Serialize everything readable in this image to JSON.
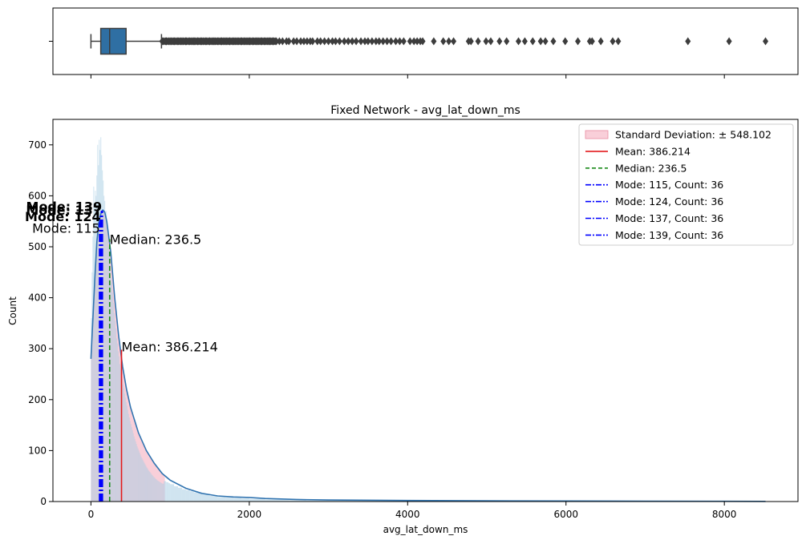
{
  "chart_data": [
    {
      "type": "boxplot",
      "orientation": "horizontal",
      "xlim": [
        -480,
        8930
      ],
      "box": {
        "min": 0,
        "q1": 124,
        "median": 236.5,
        "q3": 444,
        "whisker_high": 891,
        "color": "#2f6fa3"
      },
      "outliers": [
        900,
        950,
        1000,
        1050,
        1100,
        1150,
        1200,
        1250,
        1300,
        1350,
        1400,
        1450,
        1500,
        1550,
        1600,
        1650,
        1700,
        1750,
        1800,
        1850,
        1900,
        1950,
        2000,
        2050,
        2100,
        2150,
        2200,
        2250,
        2300,
        2380,
        2420,
        2470,
        2500,
        2560,
        2600,
        2650,
        2690,
        2730,
        2770,
        2800,
        2860,
        2900,
        2950,
        3000,
        3050,
        3090,
        3140,
        3200,
        3250,
        3300,
        3350,
        3410,
        3460,
        3500,
        3550,
        3600,
        3640,
        3690,
        3740,
        3790,
        3850,
        3900,
        3950,
        4030,
        4080,
        4120,
        4160,
        4190,
        4330,
        4450,
        4520,
        4580,
        4770,
        4800,
        4890,
        4990,
        5050,
        5160,
        5250,
        5400,
        5480,
        5580,
        5680,
        5740,
        5840,
        5990,
        6150,
        6300,
        6330,
        6440,
        6590,
        6660,
        7540,
        8060,
        8520
      ]
    },
    {
      "type": "histogram",
      "title": "Fixed Network - avg_lat_down_ms",
      "xlabel": "avg_lat_down_ms",
      "ylabel": "Count",
      "xlim": [
        -480,
        8930
      ],
      "ylim": [
        0,
        750
      ],
      "xticks": [
        0,
        2000,
        4000,
        6000,
        8000
      ],
      "yticks": [
        0,
        100,
        200,
        300,
        400,
        500,
        600,
        700
      ],
      "bin_width": 10,
      "hist_color": "#a9cde3",
      "kde_color": "#3174b0",
      "histogram_bins": [
        {
          "x": 0,
          "count": 360
        },
        {
          "x": 10,
          "count": 450
        },
        {
          "x": 20,
          "count": 520
        },
        {
          "x": 30,
          "count": 618
        },
        {
          "x": 40,
          "count": 580
        },
        {
          "x": 50,
          "count": 610
        },
        {
          "x": 60,
          "count": 600
        },
        {
          "x": 70,
          "count": 640
        },
        {
          "x": 80,
          "count": 700
        },
        {
          "x": 90,
          "count": 660
        },
        {
          "x": 100,
          "count": 710
        },
        {
          "x": 110,
          "count": 690
        },
        {
          "x": 120,
          "count": 715
        },
        {
          "x": 130,
          "count": 680
        },
        {
          "x": 140,
          "count": 650
        },
        {
          "x": 150,
          "count": 630
        },
        {
          "x": 160,
          "count": 600
        },
        {
          "x": 170,
          "count": 590
        },
        {
          "x": 180,
          "count": 560
        },
        {
          "x": 190,
          "count": 570
        },
        {
          "x": 200,
          "count": 540
        },
        {
          "x": 210,
          "count": 520
        },
        {
          "x": 220,
          "count": 500
        },
        {
          "x": 230,
          "count": 480
        },
        {
          "x": 240,
          "count": 460
        },
        {
          "x": 250,
          "count": 440
        },
        {
          "x": 260,
          "count": 430
        },
        {
          "x": 270,
          "count": 410
        },
        {
          "x": 280,
          "count": 390
        },
        {
          "x": 290,
          "count": 370
        },
        {
          "x": 300,
          "count": 355
        },
        {
          "x": 310,
          "count": 340
        },
        {
          "x": 320,
          "count": 320
        },
        {
          "x": 330,
          "count": 310
        },
        {
          "x": 340,
          "count": 295
        },
        {
          "x": 350,
          "count": 285
        },
        {
          "x": 360,
          "count": 270
        },
        {
          "x": 370,
          "count": 260
        },
        {
          "x": 380,
          "count": 250
        },
        {
          "x": 390,
          "count": 240
        },
        {
          "x": 400,
          "count": 230
        },
        {
          "x": 410,
          "count": 222
        },
        {
          "x": 420,
          "count": 212
        },
        {
          "x": 430,
          "count": 204
        },
        {
          "x": 440,
          "count": 195
        },
        {
          "x": 450,
          "count": 188
        },
        {
          "x": 460,
          "count": 180
        },
        {
          "x": 470,
          "count": 172
        },
        {
          "x": 480,
          "count": 165
        },
        {
          "x": 490,
          "count": 158
        },
        {
          "x": 500,
          "count": 152
        },
        {
          "x": 510,
          "count": 146
        },
        {
          "x": 520,
          "count": 140
        },
        {
          "x": 530,
          "count": 134
        },
        {
          "x": 540,
          "count": 128
        },
        {
          "x": 550,
          "count": 123
        },
        {
          "x": 560,
          "count": 118
        },
        {
          "x": 570,
          "count": 113
        },
        {
          "x": 580,
          "count": 108
        },
        {
          "x": 590,
          "count": 104
        },
        {
          "x": 600,
          "count": 100
        },
        {
          "x": 610,
          "count": 96
        },
        {
          "x": 620,
          "count": 92
        },
        {
          "x": 630,
          "count": 88
        },
        {
          "x": 640,
          "count": 85
        },
        {
          "x": 650,
          "count": 82
        },
        {
          "x": 660,
          "count": 79
        },
        {
          "x": 670,
          "count": 76
        },
        {
          "x": 680,
          "count": 73
        },
        {
          "x": 690,
          "count": 70
        },
        {
          "x": 700,
          "count": 67
        },
        {
          "x": 710,
          "count": 65
        },
        {
          "x": 720,
          "count": 62
        },
        {
          "x": 730,
          "count": 60
        },
        {
          "x": 740,
          "count": 58
        },
        {
          "x": 750,
          "count": 56
        },
        {
          "x": 760,
          "count": 54
        },
        {
          "x": 770,
          "count": 52
        },
        {
          "x": 780,
          "count": 50
        },
        {
          "x": 790,
          "count": 48
        },
        {
          "x": 800,
          "count": 47
        },
        {
          "x": 810,
          "count": 45
        },
        {
          "x": 820,
          "count": 44
        },
        {
          "x": 830,
          "count": 42
        },
        {
          "x": 840,
          "count": 41
        },
        {
          "x": 850,
          "count": 40
        },
        {
          "x": 860,
          "count": 39
        },
        {
          "x": 870,
          "count": 38
        },
        {
          "x": 880,
          "count": 37
        },
        {
          "x": 890,
          "count": 36
        },
        {
          "x": 900,
          "count": 35
        },
        {
          "x": 920,
          "count": 40
        },
        {
          "x": 950,
          "count": 38
        },
        {
          "x": 980,
          "count": 36
        },
        {
          "x": 1000,
          "count": 34
        },
        {
          "x": 1050,
          "count": 30
        },
        {
          "x": 1100,
          "count": 27
        },
        {
          "x": 1150,
          "count": 24
        },
        {
          "x": 1200,
          "count": 22
        },
        {
          "x": 1250,
          "count": 20
        },
        {
          "x": 1300,
          "count": 18
        },
        {
          "x": 1400,
          "count": 14
        },
        {
          "x": 1500,
          "count": 11
        },
        {
          "x": 1600,
          "count": 9
        },
        {
          "x": 1700,
          "count": 8
        },
        {
          "x": 1800,
          "count": 7
        },
        {
          "x": 1900,
          "count": 6
        },
        {
          "x": 2000,
          "count": 5
        },
        {
          "x": 2200,
          "count": 4
        },
        {
          "x": 2500,
          "count": 3
        },
        {
          "x": 3000,
          "count": 2
        },
        {
          "x": 4000,
          "count": 1
        }
      ],
      "kde": [
        {
          "x": 0,
          "y": 280
        },
        {
          "x": 25,
          "y": 360
        },
        {
          "x": 50,
          "y": 440
        },
        {
          "x": 75,
          "y": 510
        },
        {
          "x": 100,
          "y": 548
        },
        {
          "x": 125,
          "y": 565
        },
        {
          "x": 150,
          "y": 572
        },
        {
          "x": 175,
          "y": 568
        },
        {
          "x": 200,
          "y": 550
        },
        {
          "x": 250,
          "y": 490
        },
        {
          "x": 300,
          "y": 400
        },
        {
          "x": 350,
          "y": 325
        },
        {
          "x": 400,
          "y": 265
        },
        {
          "x": 450,
          "y": 220
        },
        {
          "x": 500,
          "y": 185
        },
        {
          "x": 600,
          "y": 135
        },
        {
          "x": 700,
          "y": 100
        },
        {
          "x": 800,
          "y": 75
        },
        {
          "x": 900,
          "y": 55
        },
        {
          "x": 1000,
          "y": 42
        },
        {
          "x": 1200,
          "y": 26
        },
        {
          "x": 1400,
          "y": 16
        },
        {
          "x": 1600,
          "y": 11
        },
        {
          "x": 1800,
          "y": 9
        },
        {
          "x": 2000,
          "y": 8
        },
        {
          "x": 2200,
          "y": 6
        },
        {
          "x": 2600,
          "y": 4
        },
        {
          "x": 3000,
          "y": 3
        },
        {
          "x": 4000,
          "y": 2
        },
        {
          "x": 5000,
          "y": 1.5
        },
        {
          "x": 6000,
          "y": 1
        },
        {
          "x": 7000,
          "y": 0.8
        },
        {
          "x": 8000,
          "y": 0.5
        },
        {
          "x": 8520,
          "y": 0.3
        }
      ],
      "std_band": {
        "from": 0,
        "to": 934.316,
        "color": "#f4a7b9"
      },
      "mean": {
        "value": 386.214,
        "height": 298,
        "label": "Mean: 386.214",
        "color": "#e31a1c"
      },
      "median": {
        "value": 236.5,
        "height": 515,
        "label": "Median: 236.5",
        "color": "#1a8a1a"
      },
      "modes": [
        {
          "value": 115,
          "height": 548,
          "label": "Mode: 115",
          "color": "#0000ff"
        },
        {
          "value": 124,
          "height": 560,
          "label": "Mode: 124",
          "color": "#0000ff"
        },
        {
          "value": 137,
          "height": 568,
          "label": "Mode: 137",
          "color": "#0000ff"
        },
        {
          "value": 139,
          "height": 571,
          "label": "Mode: 139",
          "color": "#0000ff"
        }
      ],
      "legend": {
        "position": "top-right",
        "entries": [
          {
            "label": "Standard Deviation: ± 548.102",
            "style": "patch",
            "color": "#f4a7b9"
          },
          {
            "label": "Mean: 386.214",
            "style": "solid",
            "color": "#e31a1c"
          },
          {
            "label": "Median: 236.5",
            "style": "dashed",
            "color": "#1a8a1a"
          },
          {
            "label": "Mode: 115, Count: 36",
            "style": "dashdot",
            "color": "#0000ff"
          },
          {
            "label": "Mode: 124, Count: 36",
            "style": "dashdot",
            "color": "#0000ff"
          },
          {
            "label": "Mode: 137, Count: 36",
            "style": "dashdot",
            "color": "#0000ff"
          },
          {
            "label": "Mode: 139, Count: 36",
            "style": "dashdot",
            "color": "#0000ff"
          }
        ]
      }
    }
  ]
}
